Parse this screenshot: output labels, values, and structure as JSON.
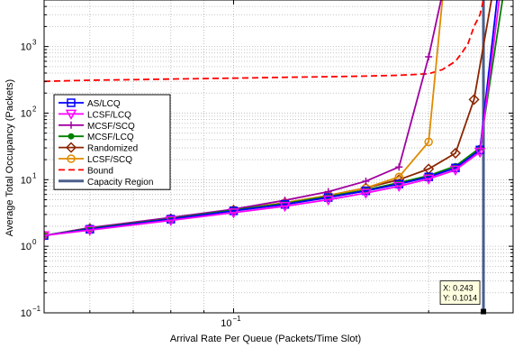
{
  "chart_data": {
    "type": "line",
    "xlabel": "Arrival Rate Per Queue (Packets/Time Slot)",
    "ylabel": "Average Total Occupancy (Packets)",
    "xscale": "log",
    "yscale": "log",
    "xlim": [
      0.051,
      0.27
    ],
    "ylim": [
      0.1,
      5000
    ],
    "grid": "dotted, major and minor",
    "legend_position": "left",
    "x_tick_labels": [
      {
        "value": 0.1,
        "label": "10",
        "exp": "−1"
      }
    ],
    "y_tick_labels": [
      {
        "value": 0.1,
        "label": "10",
        "exp": "−1"
      },
      {
        "value": 1,
        "label": "10",
        "exp": "0"
      },
      {
        "value": 10,
        "label": "10",
        "exp": "1"
      },
      {
        "value": 100,
        "label": "10",
        "exp": "2"
      },
      {
        "value": 1000,
        "label": "10",
        "exp": "3"
      }
    ],
    "datatip": {
      "x": 0.243,
      "y": 0.1014,
      "x_text": "X: 0.243",
      "y_text": "Y: 0.1014"
    },
    "series": [
      {
        "name": "Capacity Region",
        "color": "#4a5f8c",
        "style": "vline",
        "marker": "none",
        "x": [
          0.243,
          0.243
        ],
        "y": [
          0.1014,
          5000
        ]
      },
      {
        "name": "Bound",
        "color": "#ff0000",
        "style": "dashed",
        "marker": "none",
        "x": [
          0.051,
          0.06,
          0.07,
          0.08,
          0.09,
          0.1,
          0.12,
          0.14,
          0.16,
          0.18,
          0.2,
          0.21,
          0.22,
          0.225,
          0.23,
          0.235,
          0.24,
          0.243
        ],
        "y": [
          300,
          312,
          318,
          325,
          330,
          335,
          345,
          352,
          360,
          370,
          390,
          450,
          600,
          800,
          1100,
          2000,
          3000,
          5000
        ]
      },
      {
        "name": "Randomized",
        "color": "#8b2500",
        "style": "solid",
        "marker": "diamond",
        "x": [
          0.051,
          0.06,
          0.08,
          0.1,
          0.12,
          0.14,
          0.16,
          0.18,
          0.2,
          0.22,
          0.235,
          0.25
        ],
        "y": [
          1.45,
          1.85,
          2.6,
          3.5,
          4.5,
          5.8,
          7.5,
          10.0,
          14.5,
          25,
          160,
          5000
        ]
      },
      {
        "name": "LCSF/SCQ",
        "color": "#e08a00",
        "style": "solid",
        "marker": "circle",
        "x": [
          0.051,
          0.06,
          0.08,
          0.1,
          0.12,
          0.14,
          0.16,
          0.18,
          0.2,
          0.21
        ],
        "y": [
          1.45,
          1.85,
          2.6,
          3.5,
          4.5,
          5.8,
          7.5,
          11.0,
          37,
          5000
        ]
      },
      {
        "name": "MCSF/SCQ",
        "color": "#a000a0",
        "style": "solid",
        "marker": "plus",
        "x": [
          0.051,
          0.06,
          0.08,
          0.1,
          0.12,
          0.14,
          0.16,
          0.18,
          0.2,
          0.209
        ],
        "y": [
          1.45,
          1.9,
          2.7,
          3.6,
          4.9,
          6.6,
          9.5,
          15.5,
          700,
          5000
        ]
      },
      {
        "name": "MCSF/LCQ",
        "color": "#008000",
        "style": "solid",
        "marker": "dot",
        "x": [
          0.051,
          0.06,
          0.08,
          0.1,
          0.12,
          0.14,
          0.16,
          0.18,
          0.2,
          0.22,
          0.24,
          0.26
        ],
        "y": [
          1.45,
          1.85,
          2.6,
          3.5,
          4.4,
          5.6,
          7.0,
          9.0,
          11.5,
          16,
          30,
          5000
        ]
      },
      {
        "name": "AS/LCQ",
        "color": "#0000ff",
        "style": "solid",
        "marker": "square",
        "x": [
          0.051,
          0.06,
          0.08,
          0.1,
          0.12,
          0.14,
          0.16,
          0.18,
          0.2,
          0.22,
          0.24,
          0.255
        ],
        "y": [
          1.45,
          1.8,
          2.55,
          3.4,
          4.25,
          5.4,
          6.8,
          8.6,
          11.0,
          15,
          28,
          5000
        ]
      },
      {
        "name": "LCSF/LCQ",
        "color": "#ff00ff",
        "style": "solid",
        "marker": "triangle",
        "x": [
          0.051,
          0.06,
          0.08,
          0.1,
          0.12,
          0.14,
          0.16,
          0.18,
          0.2,
          0.22,
          0.24,
          0.257
        ],
        "y": [
          1.45,
          1.75,
          2.45,
          3.2,
          4.0,
          5.0,
          6.3,
          8.0,
          10.3,
          14,
          26,
          5000
        ]
      }
    ],
    "legend": [
      "AS/LCQ",
      "LCSF/LCQ",
      "MCSF/SCQ",
      "MCSF/LCQ",
      "Randomized",
      "LCSF/SCQ",
      "Bound",
      "Capacity Region"
    ]
  }
}
